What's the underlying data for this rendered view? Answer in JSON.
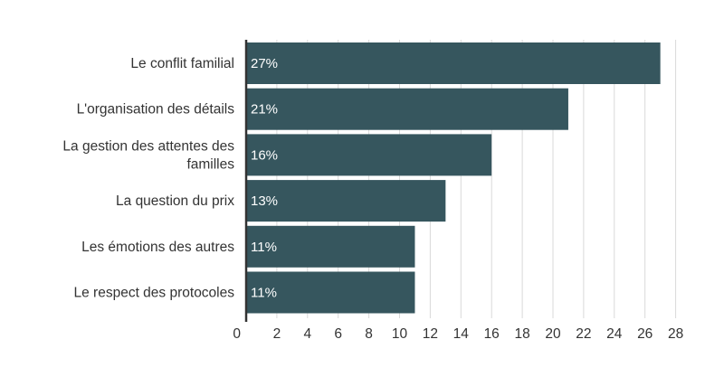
{
  "chart_data": {
    "type": "bar",
    "orientation": "horizontal",
    "categories": [
      "Le conflit familial",
      "L'organisation des détails",
      [
        "La gestion des attentes des",
        "familles"
      ],
      "La question du prix",
      "Les émotions des autres",
      "Le respect des protocoles"
    ],
    "values": [
      27,
      21,
      16,
      13,
      11,
      11
    ],
    "data_labels": [
      "27%",
      "21%",
      "16%",
      "13%",
      "11%",
      "11%"
    ],
    "xticks": [
      0,
      2,
      4,
      6,
      8,
      10,
      12,
      14,
      16,
      18,
      20,
      22,
      24,
      26,
      28
    ],
    "xlim": [
      0,
      28
    ],
    "grid": true,
    "colors": {
      "bar": "#36565e",
      "grid": "#d9d9d9",
      "axis": "#333333",
      "text": "#333333",
      "data_label": "#ffffff"
    }
  }
}
